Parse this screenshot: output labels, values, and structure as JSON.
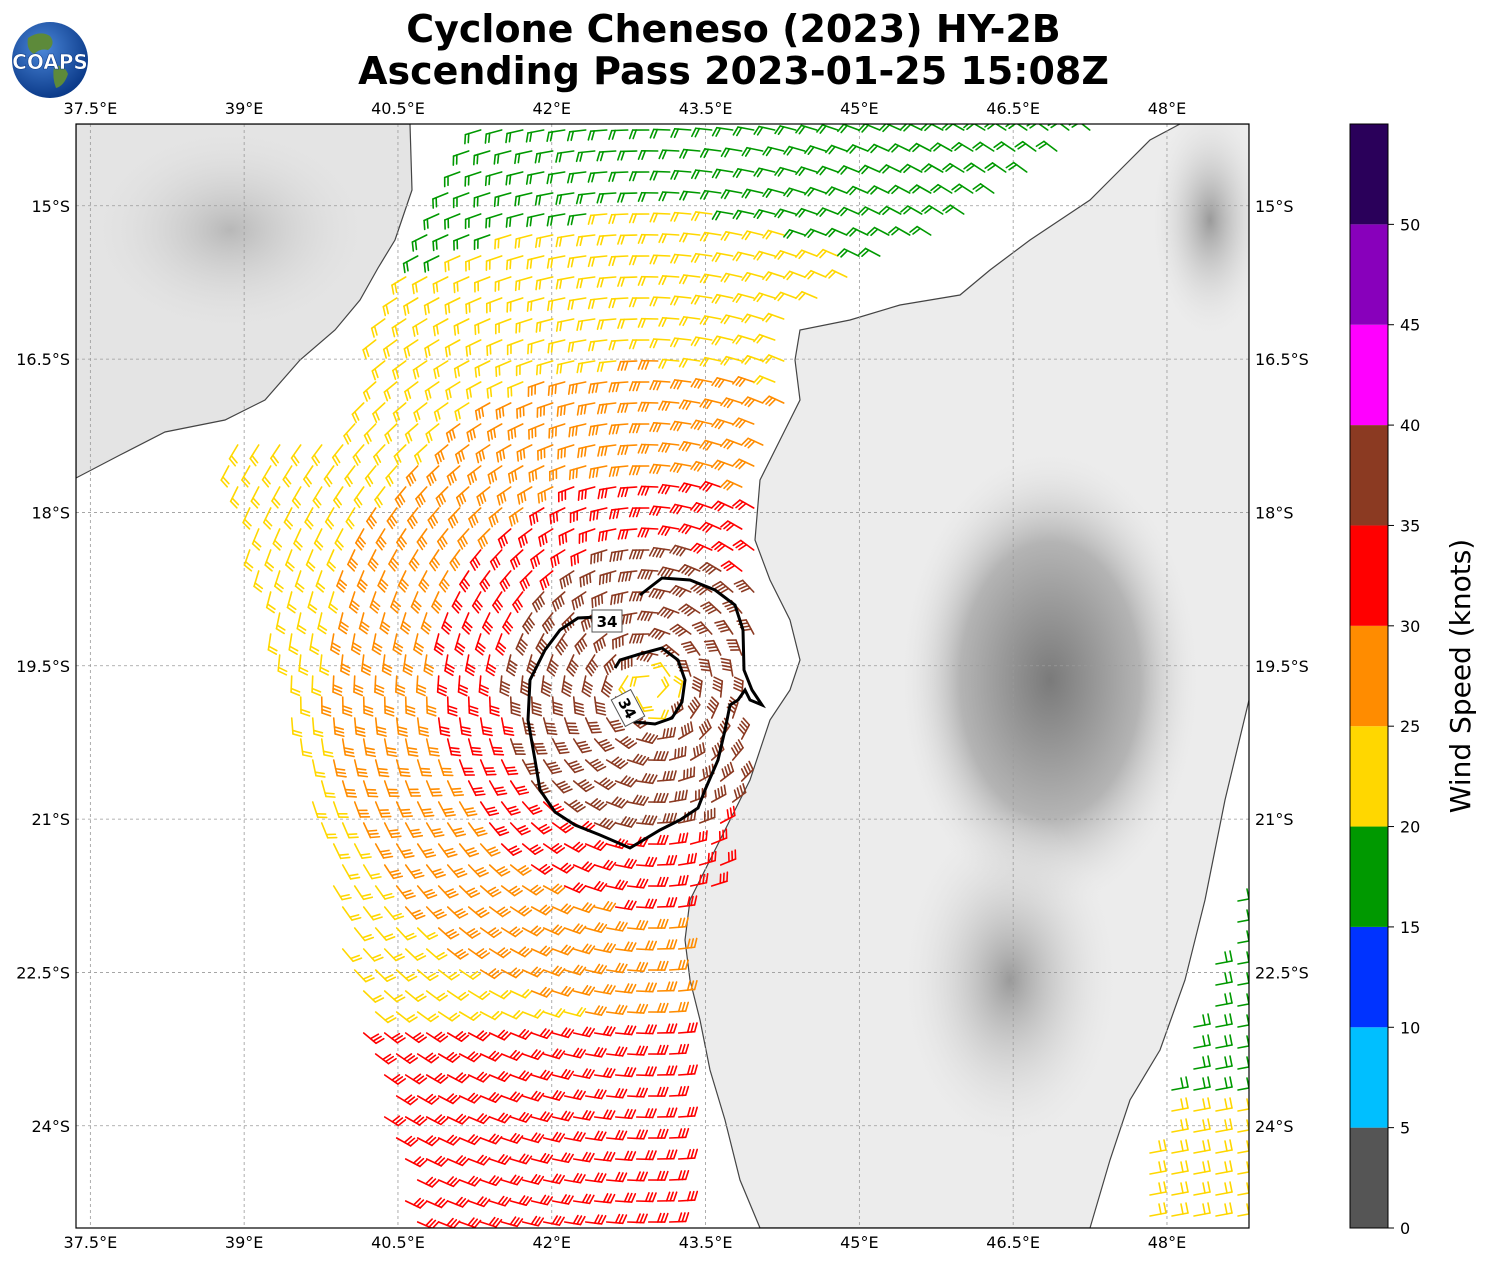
{
  "title": {
    "line1": "Cyclone Cheneso (2023) HY-2B",
    "line2": "Ascending Pass 2023-01-25 15:08Z"
  },
  "logo": {
    "text": "COAPS",
    "icon": "globe-icon"
  },
  "map": {
    "lon_ticks": [
      "37.5°E",
      "39°E",
      "40.5°E",
      "42°E",
      "43.5°E",
      "45°E",
      "46.5°E",
      "48°E"
    ],
    "lat_ticks": [
      "15°S",
      "16.5°S",
      "18°S",
      "19.5°S",
      "21°S",
      "22.5°S",
      "24°S"
    ],
    "lon_range": [
      37.36,
      48.8
    ],
    "lat_range": [
      -25.0,
      -14.2
    ],
    "contour_label": "34",
    "contour_value_knots": 34
  },
  "colorbar": {
    "title": "Wind Speed (knots)",
    "tick_labels": [
      "0",
      "5",
      "10",
      "15",
      "20",
      "25",
      "30",
      "35",
      "40",
      "45",
      "50"
    ],
    "colors": [
      "#555555",
      "#00bfff",
      "#0033ff",
      "#009900",
      "#ffd700",
      "#ff8c00",
      "#ff0000",
      "#8b3a22",
      "#ff00ff",
      "#8800bb",
      "#2a005a"
    ]
  }
}
